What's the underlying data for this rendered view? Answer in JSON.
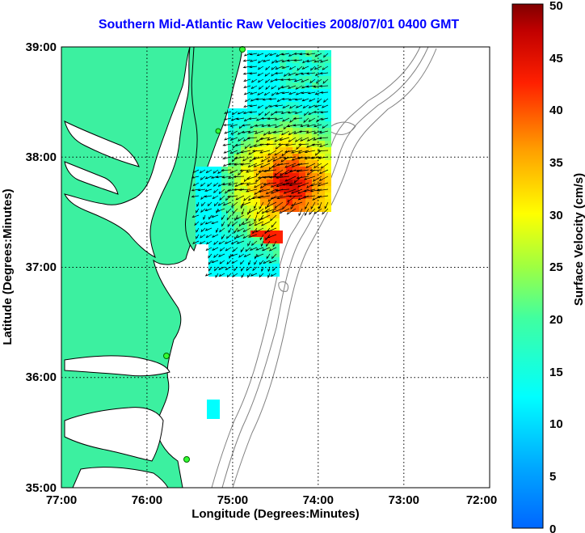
{
  "title": "Southern Mid-Atlantic Raw Velocities 2008/07/01 0400 GMT",
  "x_axis": {
    "label": "Longitude (Degrees:Minutes)",
    "ticks": [
      "77:00",
      "76:00",
      "75:00",
      "74:00",
      "73:00",
      "72:00"
    ]
  },
  "y_axis": {
    "label": "Latitude (Degrees:Minutes)",
    "ticks": [
      "39:00",
      "38:00",
      "37:00",
      "36:00",
      "35:00"
    ]
  },
  "colorbar": {
    "label": "Surface Velocity (cm/s)",
    "ticks": [
      "50",
      "45",
      "40",
      "35",
      "30",
      "25",
      "20",
      "15",
      "10",
      "5",
      "0"
    ],
    "range": [
      0,
      50
    ],
    "colormap": "jet"
  },
  "colors": {
    "title": "#0000ff",
    "land": "#3cf0a0",
    "coastline": "#000000",
    "bathymetry": "#808080",
    "grid": "#000000"
  },
  "map": {
    "lon_range": [
      -77,
      -72
    ],
    "lat_range": [
      35,
      39
    ],
    "grid": "dotted",
    "station_markers": "green circles"
  }
}
